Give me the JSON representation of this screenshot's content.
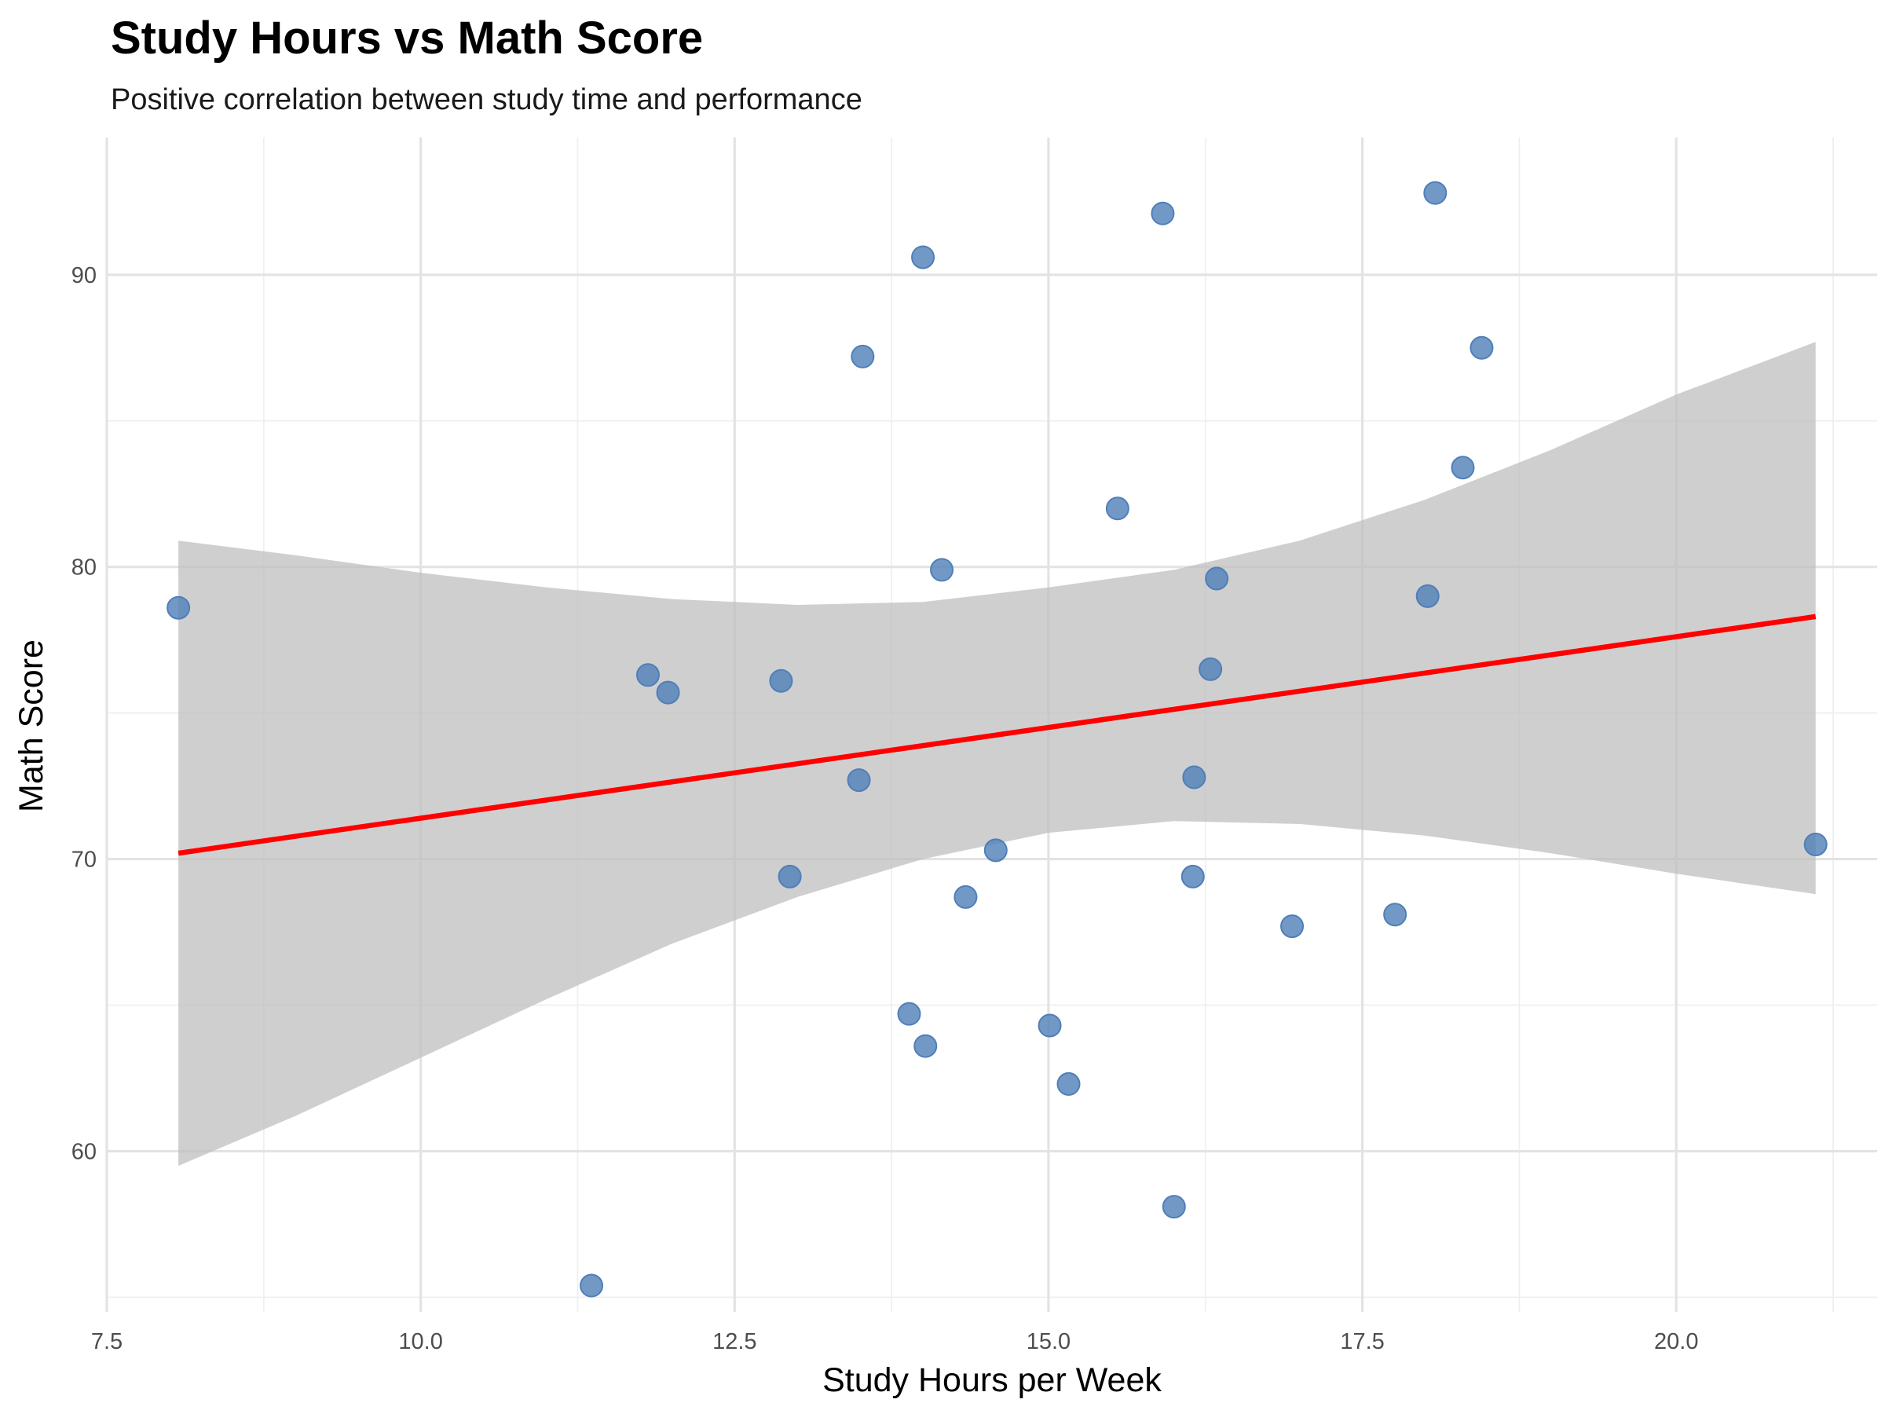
{
  "chart_data": {
    "type": "scatter",
    "title": "Study Hours vs Math Score",
    "subtitle": "Positive correlation between study time and performance",
    "xlabel": "Study Hours per Week",
    "ylabel": "Math Score",
    "xlim": [
      7.5,
      21.6
    ],
    "ylim": [
      54.5,
      94.7
    ],
    "x_ticks": [
      "7.5",
      "10.0",
      "12.5",
      "15.0",
      "17.5",
      "20.0"
    ],
    "y_ticks": [
      "60",
      "70",
      "80",
      "90"
    ],
    "grid": true,
    "legend": "none",
    "colors": {
      "points": "#4f7fb8",
      "trend_line": "#ff0000",
      "confidence_band": "#bfbfbf"
    },
    "points": [
      {
        "x": 8.07,
        "y": 78.6
      },
      {
        "x": 11.36,
        "y": 55.4
      },
      {
        "x": 11.81,
        "y": 76.3
      },
      {
        "x": 11.97,
        "y": 75.7
      },
      {
        "x": 12.87,
        "y": 76.1
      },
      {
        "x": 12.94,
        "y": 69.4
      },
      {
        "x": 13.49,
        "y": 72.7
      },
      {
        "x": 13.52,
        "y": 87.2
      },
      {
        "x": 13.89,
        "y": 64.7
      },
      {
        "x": 14.0,
        "y": 90.6
      },
      {
        "x": 14.02,
        "y": 63.6
      },
      {
        "x": 14.15,
        "y": 79.9
      },
      {
        "x": 14.34,
        "y": 68.7
      },
      {
        "x": 14.58,
        "y": 70.3
      },
      {
        "x": 15.01,
        "y": 64.3
      },
      {
        "x": 15.16,
        "y": 62.3
      },
      {
        "x": 15.55,
        "y": 82.0
      },
      {
        "x": 15.91,
        "y": 92.1
      },
      {
        "x": 16.0,
        "y": 58.1
      },
      {
        "x": 16.15,
        "y": 69.4
      },
      {
        "x": 16.16,
        "y": 72.8
      },
      {
        "x": 16.29,
        "y": 76.5
      },
      {
        "x": 16.34,
        "y": 79.6
      },
      {
        "x": 16.94,
        "y": 67.7
      },
      {
        "x": 17.76,
        "y": 68.1
      },
      {
        "x": 18.02,
        "y": 79.0
      },
      {
        "x": 18.08,
        "y": 92.8
      },
      {
        "x": 18.3,
        "y": 83.4
      },
      {
        "x": 18.45,
        "y": 87.5
      },
      {
        "x": 21.11,
        "y": 70.5
      }
    ],
    "trend_line": {
      "x": [
        8.07,
        21.11
      ],
      "y": [
        70.2,
        78.3
      ]
    },
    "confidence_band": [
      {
        "x": 8.07,
        "lower": 59.5,
        "upper": 80.9
      },
      {
        "x": 9.0,
        "lower": 61.2,
        "upper": 80.4
      },
      {
        "x": 10.0,
        "lower": 63.2,
        "upper": 79.8
      },
      {
        "x": 11.0,
        "lower": 65.2,
        "upper": 79.3
      },
      {
        "x": 12.0,
        "lower": 67.1,
        "upper": 78.9
      },
      {
        "x": 13.0,
        "lower": 68.7,
        "upper": 78.7
      },
      {
        "x": 14.0,
        "lower": 70.0,
        "upper": 78.8
      },
      {
        "x": 15.0,
        "lower": 70.9,
        "upper": 79.3
      },
      {
        "x": 16.0,
        "lower": 71.3,
        "upper": 79.9
      },
      {
        "x": 17.0,
        "lower": 71.2,
        "upper": 80.9
      },
      {
        "x": 18.0,
        "lower": 70.8,
        "upper": 82.3
      },
      {
        "x": 19.0,
        "lower": 70.2,
        "upper": 84.0
      },
      {
        "x": 20.0,
        "lower": 69.5,
        "upper": 85.9
      },
      {
        "x": 21.11,
        "lower": 68.8,
        "upper": 87.7
      }
    ]
  }
}
